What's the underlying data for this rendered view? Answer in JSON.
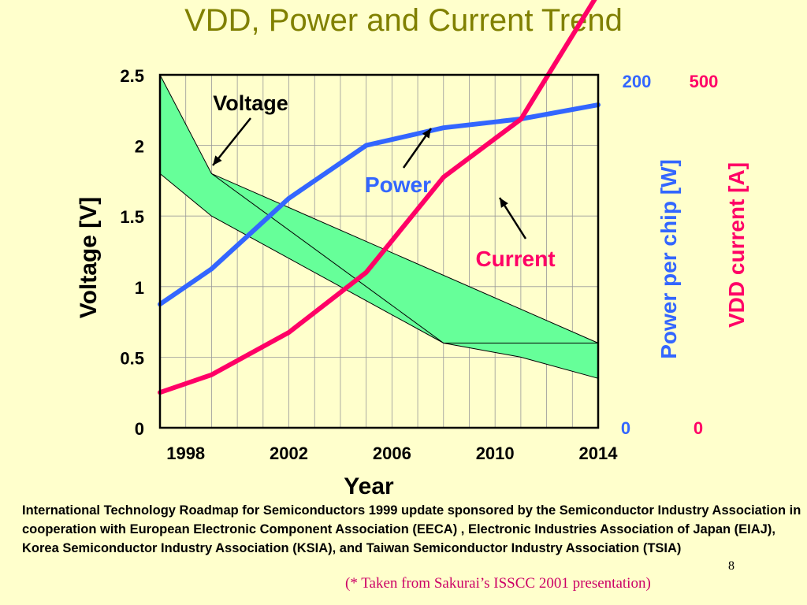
{
  "slide": {
    "title": "VDD, Power and Current Trend",
    "source_text": "International Technology Roadmap for Semiconductors 1999 update sponsored by the Semiconductor Industry Association in cooperation with European Electronic Component Association (EECA) , Electronic Industries Association of Japan (EIAJ), Korea Semiconductor Industry Association (KSIA), and Taiwan Semiconductor Industry Association (TSIA)",
    "page_number": "8",
    "credit": "(* Taken from Sakurai’s ISSCC 2001 presentation)"
  },
  "colors": {
    "background": "#ffffcc",
    "title": "#808000",
    "band_fill": "#66ff99",
    "power": "#3366ff",
    "current": "#ff0066",
    "credit": "#cc0066"
  },
  "chart_data": {
    "type": "line",
    "xlabel": "Year",
    "x_ticks": [
      1998,
      2002,
      2006,
      2010,
      2014
    ],
    "xlim": [
      1997,
      2014
    ],
    "grid": true,
    "y_left": {
      "label": "Voltage [V]",
      "ticks": [
        "0",
        "0.5",
        "1",
        "1.5",
        "2",
        "2.5"
      ],
      "range": [
        0,
        2.5
      ]
    },
    "y_right_power": {
      "label": "Power per chip [W]",
      "min_label": "0",
      "max_label": "200",
      "range": [
        0,
        200
      ]
    },
    "y_right_current": {
      "label": "VDD current [A]",
      "min_label": "0",
      "max_label": "500",
      "range": [
        0,
        500
      ]
    },
    "voltage_band": {
      "name": "Voltage",
      "upper": [
        [
          1997,
          2.5
        ],
        [
          1999,
          1.8
        ],
        [
          2014,
          0.6
        ]
      ],
      "mid_line": [
        [
          1999,
          1.8
        ],
        [
          2008,
          0.6
        ],
        [
          2011,
          0.6
        ],
        [
          2014,
          0.6
        ]
      ],
      "lower": [
        [
          1997,
          1.8
        ],
        [
          1999,
          1.5
        ],
        [
          2008,
          0.6
        ],
        [
          2011,
          0.5
        ],
        [
          2014,
          0.35
        ]
      ]
    },
    "series": [
      {
        "name": "Power",
        "axis": "power",
        "points": [
          [
            1997,
            70
          ],
          [
            1999,
            90
          ],
          [
            2002,
            130
          ],
          [
            2005,
            160
          ],
          [
            2008,
            170
          ],
          [
            2011,
            175
          ],
          [
            2014,
            183
          ]
        ]
      },
      {
        "name": "Current",
        "axis": "current",
        "points": [
          [
            1997,
            50
          ],
          [
            1999,
            75
          ],
          [
            2002,
            135
          ],
          [
            2005,
            220
          ],
          [
            2008,
            355
          ],
          [
            2011,
            437
          ],
          [
            2014,
            615
          ]
        ]
      }
    ],
    "annotations": [
      {
        "text": "Voltage",
        "target_series": "Voltage"
      },
      {
        "text": "Power",
        "target_series": "Power"
      },
      {
        "text": "Current",
        "target_series": "Current"
      }
    ]
  }
}
